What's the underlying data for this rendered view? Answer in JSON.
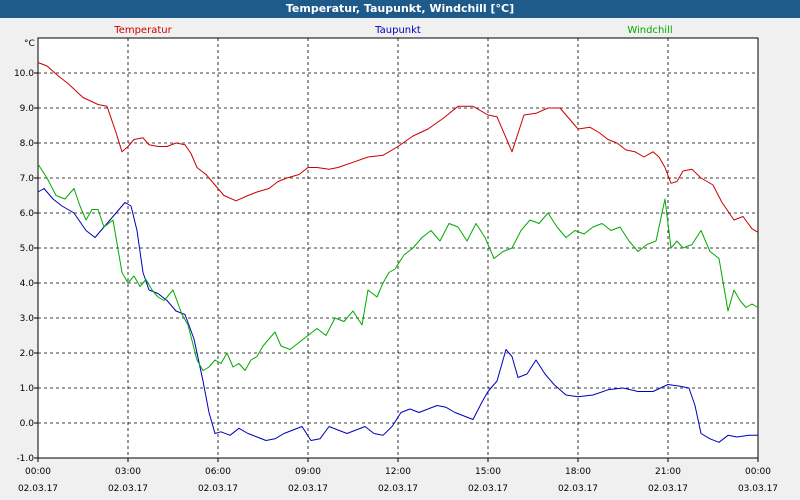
{
  "window": {
    "title": "Temperatur, Taupunkt, Windchill [°C]"
  },
  "chart_data": {
    "type": "line",
    "title": "Temperatur, Taupunkt, Windchill [°C]",
    "ylabel": "°C",
    "xlabel": "",
    "ylim": [
      -1.0,
      11.0
    ],
    "yticks": [
      "-1.0",
      "0.0",
      "1.0",
      "2.0",
      "3.0",
      "4.0",
      "5.0",
      "6.0",
      "7.0",
      "8.0",
      "9.0",
      "10.0"
    ],
    "xlim": [
      0,
      24
    ],
    "xticks": [
      {
        "time": "00:00",
        "date": "02.03.17"
      },
      {
        "time": "03:00",
        "date": "02.03.17"
      },
      {
        "time": "06:00",
        "date": "02.03.17"
      },
      {
        "time": "09:00",
        "date": "02.03.17"
      },
      {
        "time": "12:00",
        "date": "02.03.17"
      },
      {
        "time": "15:00",
        "date": "02.03.17"
      },
      {
        "time": "18:00",
        "date": "02.03.17"
      },
      {
        "time": "21:00",
        "date": "02.03.17"
      },
      {
        "time": "00:00",
        "date": "03.03.17"
      }
    ],
    "grid": true,
    "series": [
      {
        "name": "Temperatur",
        "color": "#cc0000",
        "x": [
          0,
          0.3,
          0.7,
          1.0,
          1.5,
          2.0,
          2.3,
          2.6,
          2.8,
          3.0,
          3.2,
          3.5,
          3.7,
          4.0,
          4.3,
          4.6,
          4.9,
          5.1,
          5.3,
          5.6,
          5.9,
          6.2,
          6.6,
          7.0,
          7.3,
          7.7,
          8.0,
          8.3,
          8.7,
          9.0,
          9.3,
          9.7,
          10.0,
          10.5,
          11.0,
          11.5,
          12.0,
          12.5,
          13.0,
          13.5,
          14.0,
          14.5,
          15.0,
          15.3,
          15.8,
          16.2,
          16.6,
          17.0,
          17.4,
          17.8,
          18.0,
          18.4,
          18.7,
          19.0,
          19.3,
          19.6,
          19.9,
          20.2,
          20.5,
          20.7,
          20.9,
          21.1,
          21.3,
          21.5,
          21.8,
          22.1,
          22.5,
          22.8,
          23.2,
          23.5,
          23.8,
          24.0
        ],
        "values": [
          10.3,
          10.2,
          9.9,
          9.7,
          9.3,
          9.1,
          9.05,
          8.3,
          7.75,
          7.9,
          8.1,
          8.15,
          7.95,
          7.9,
          7.9,
          8.0,
          7.95,
          7.7,
          7.3,
          7.1,
          6.8,
          6.5,
          6.35,
          6.5,
          6.6,
          6.7,
          6.9,
          7.0,
          7.1,
          7.3,
          7.3,
          7.25,
          7.3,
          7.45,
          7.6,
          7.65,
          7.9,
          8.2,
          8.4,
          8.7,
          9.05,
          9.05,
          8.8,
          8.75,
          7.75,
          8.8,
          8.85,
          9.0,
          9.0,
          8.6,
          8.4,
          8.45,
          8.3,
          8.1,
          8.0,
          7.8,
          7.75,
          7.6,
          7.75,
          7.6,
          7.3,
          6.85,
          6.9,
          7.2,
          7.25,
          7.0,
          6.8,
          6.3,
          5.8,
          5.9,
          5.55,
          5.45
        ]
      },
      {
        "name": "Taupunkt",
        "color": "#0000bb",
        "x": [
          0,
          0.2,
          0.5,
          0.8,
          1.2,
          1.6,
          1.9,
          2.2,
          2.5,
          2.7,
          2.9,
          3.1,
          3.3,
          3.5,
          3.7,
          4.0,
          4.3,
          4.6,
          4.9,
          5.2,
          5.5,
          5.7,
          5.9,
          6.1,
          6.4,
          6.7,
          7.0,
          7.3,
          7.6,
          7.9,
          8.2,
          8.5,
          8.8,
          9.1,
          9.4,
          9.7,
          10.0,
          10.3,
          10.6,
          10.9,
          11.2,
          11.5,
          11.8,
          12.1,
          12.4,
          12.7,
          13.0,
          13.3,
          13.6,
          13.9,
          14.2,
          14.5,
          14.8,
          15.0,
          15.3,
          15.6,
          15.8,
          16.0,
          16.3,
          16.6,
          16.9,
          17.2,
          17.6,
          18.0,
          18.5,
          19.0,
          19.5,
          20.0,
          20.5,
          21.0,
          21.4,
          21.7,
          21.9,
          22.1,
          22.4,
          22.7,
          23.0,
          23.3,
          23.7,
          24.0
        ],
        "values": [
          6.6,
          6.7,
          6.4,
          6.2,
          6.0,
          5.5,
          5.3,
          5.6,
          5.9,
          6.1,
          6.3,
          6.2,
          5.5,
          4.3,
          3.8,
          3.7,
          3.5,
          3.2,
          3.1,
          2.4,
          1.2,
          0.3,
          -0.3,
          -0.25,
          -0.35,
          -0.15,
          -0.3,
          -0.4,
          -0.5,
          -0.45,
          -0.3,
          -0.2,
          -0.1,
          -0.5,
          -0.45,
          -0.1,
          -0.2,
          -0.3,
          -0.2,
          -0.1,
          -0.3,
          -0.35,
          -0.1,
          0.3,
          0.4,
          0.3,
          0.4,
          0.5,
          0.45,
          0.3,
          0.2,
          0.1,
          0.6,
          0.9,
          1.2,
          2.1,
          1.9,
          1.3,
          1.4,
          1.8,
          1.4,
          1.1,
          0.8,
          0.75,
          0.8,
          0.95,
          1.0,
          0.9,
          0.9,
          1.1,
          1.05,
          1.0,
          0.5,
          -0.3,
          -0.45,
          -0.55,
          -0.35,
          -0.4,
          -0.35,
          -0.35
        ]
      },
      {
        "name": "Windchill",
        "color": "#00aa00",
        "x": [
          0,
          0.3,
          0.6,
          0.9,
          1.2,
          1.4,
          1.6,
          1.8,
          2.0,
          2.2,
          2.5,
          2.8,
          3.0,
          3.2,
          3.4,
          3.6,
          3.8,
          4.0,
          4.2,
          4.5,
          4.8,
          5.0,
          5.3,
          5.5,
          5.7,
          5.9,
          6.1,
          6.3,
          6.5,
          6.7,
          6.9,
          7.1,
          7.3,
          7.5,
          7.7,
          7.9,
          8.1,
          8.4,
          8.7,
          9.0,
          9.3,
          9.6,
          9.9,
          10.2,
          10.5,
          10.8,
          11.0,
          11.3,
          11.5,
          11.7,
          11.9,
          12.2,
          12.5,
          12.8,
          13.1,
          13.4,
          13.7,
          14.0,
          14.3,
          14.6,
          14.9,
          15.2,
          15.5,
          15.8,
          16.1,
          16.4,
          16.7,
          17.0,
          17.3,
          17.6,
          17.9,
          18.2,
          18.5,
          18.8,
          19.1,
          19.4,
          19.7,
          20.0,
          20.3,
          20.6,
          20.9,
          21.1,
          21.3,
          21.5,
          21.8,
          22.1,
          22.4,
          22.7,
          23.0,
          23.2,
          23.4,
          23.6,
          23.8,
          24.0
        ],
        "values": [
          7.4,
          7.0,
          6.5,
          6.4,
          6.7,
          6.2,
          5.8,
          6.1,
          6.1,
          5.6,
          5.8,
          4.3,
          4.0,
          4.2,
          3.9,
          4.1,
          3.8,
          3.6,
          3.5,
          3.8,
          3.1,
          2.8,
          1.8,
          1.5,
          1.6,
          1.8,
          1.7,
          2.0,
          1.6,
          1.7,
          1.5,
          1.8,
          1.9,
          2.2,
          2.4,
          2.6,
          2.2,
          2.1,
          2.3,
          2.5,
          2.7,
          2.5,
          3.0,
          2.9,
          3.2,
          2.8,
          3.8,
          3.6,
          4.0,
          4.3,
          4.4,
          4.8,
          5.0,
          5.3,
          5.5,
          5.2,
          5.7,
          5.6,
          5.2,
          5.7,
          5.3,
          4.7,
          4.9,
          5.0,
          5.5,
          5.8,
          5.7,
          6.0,
          5.6,
          5.3,
          5.5,
          5.4,
          5.6,
          5.7,
          5.5,
          5.6,
          5.2,
          4.9,
          5.1,
          5.2,
          6.4,
          5.0,
          5.2,
          5.0,
          5.1,
          5.5,
          4.9,
          4.7,
          3.2,
          3.8,
          3.5,
          3.3,
          3.4,
          3.3
        ]
      }
    ]
  }
}
